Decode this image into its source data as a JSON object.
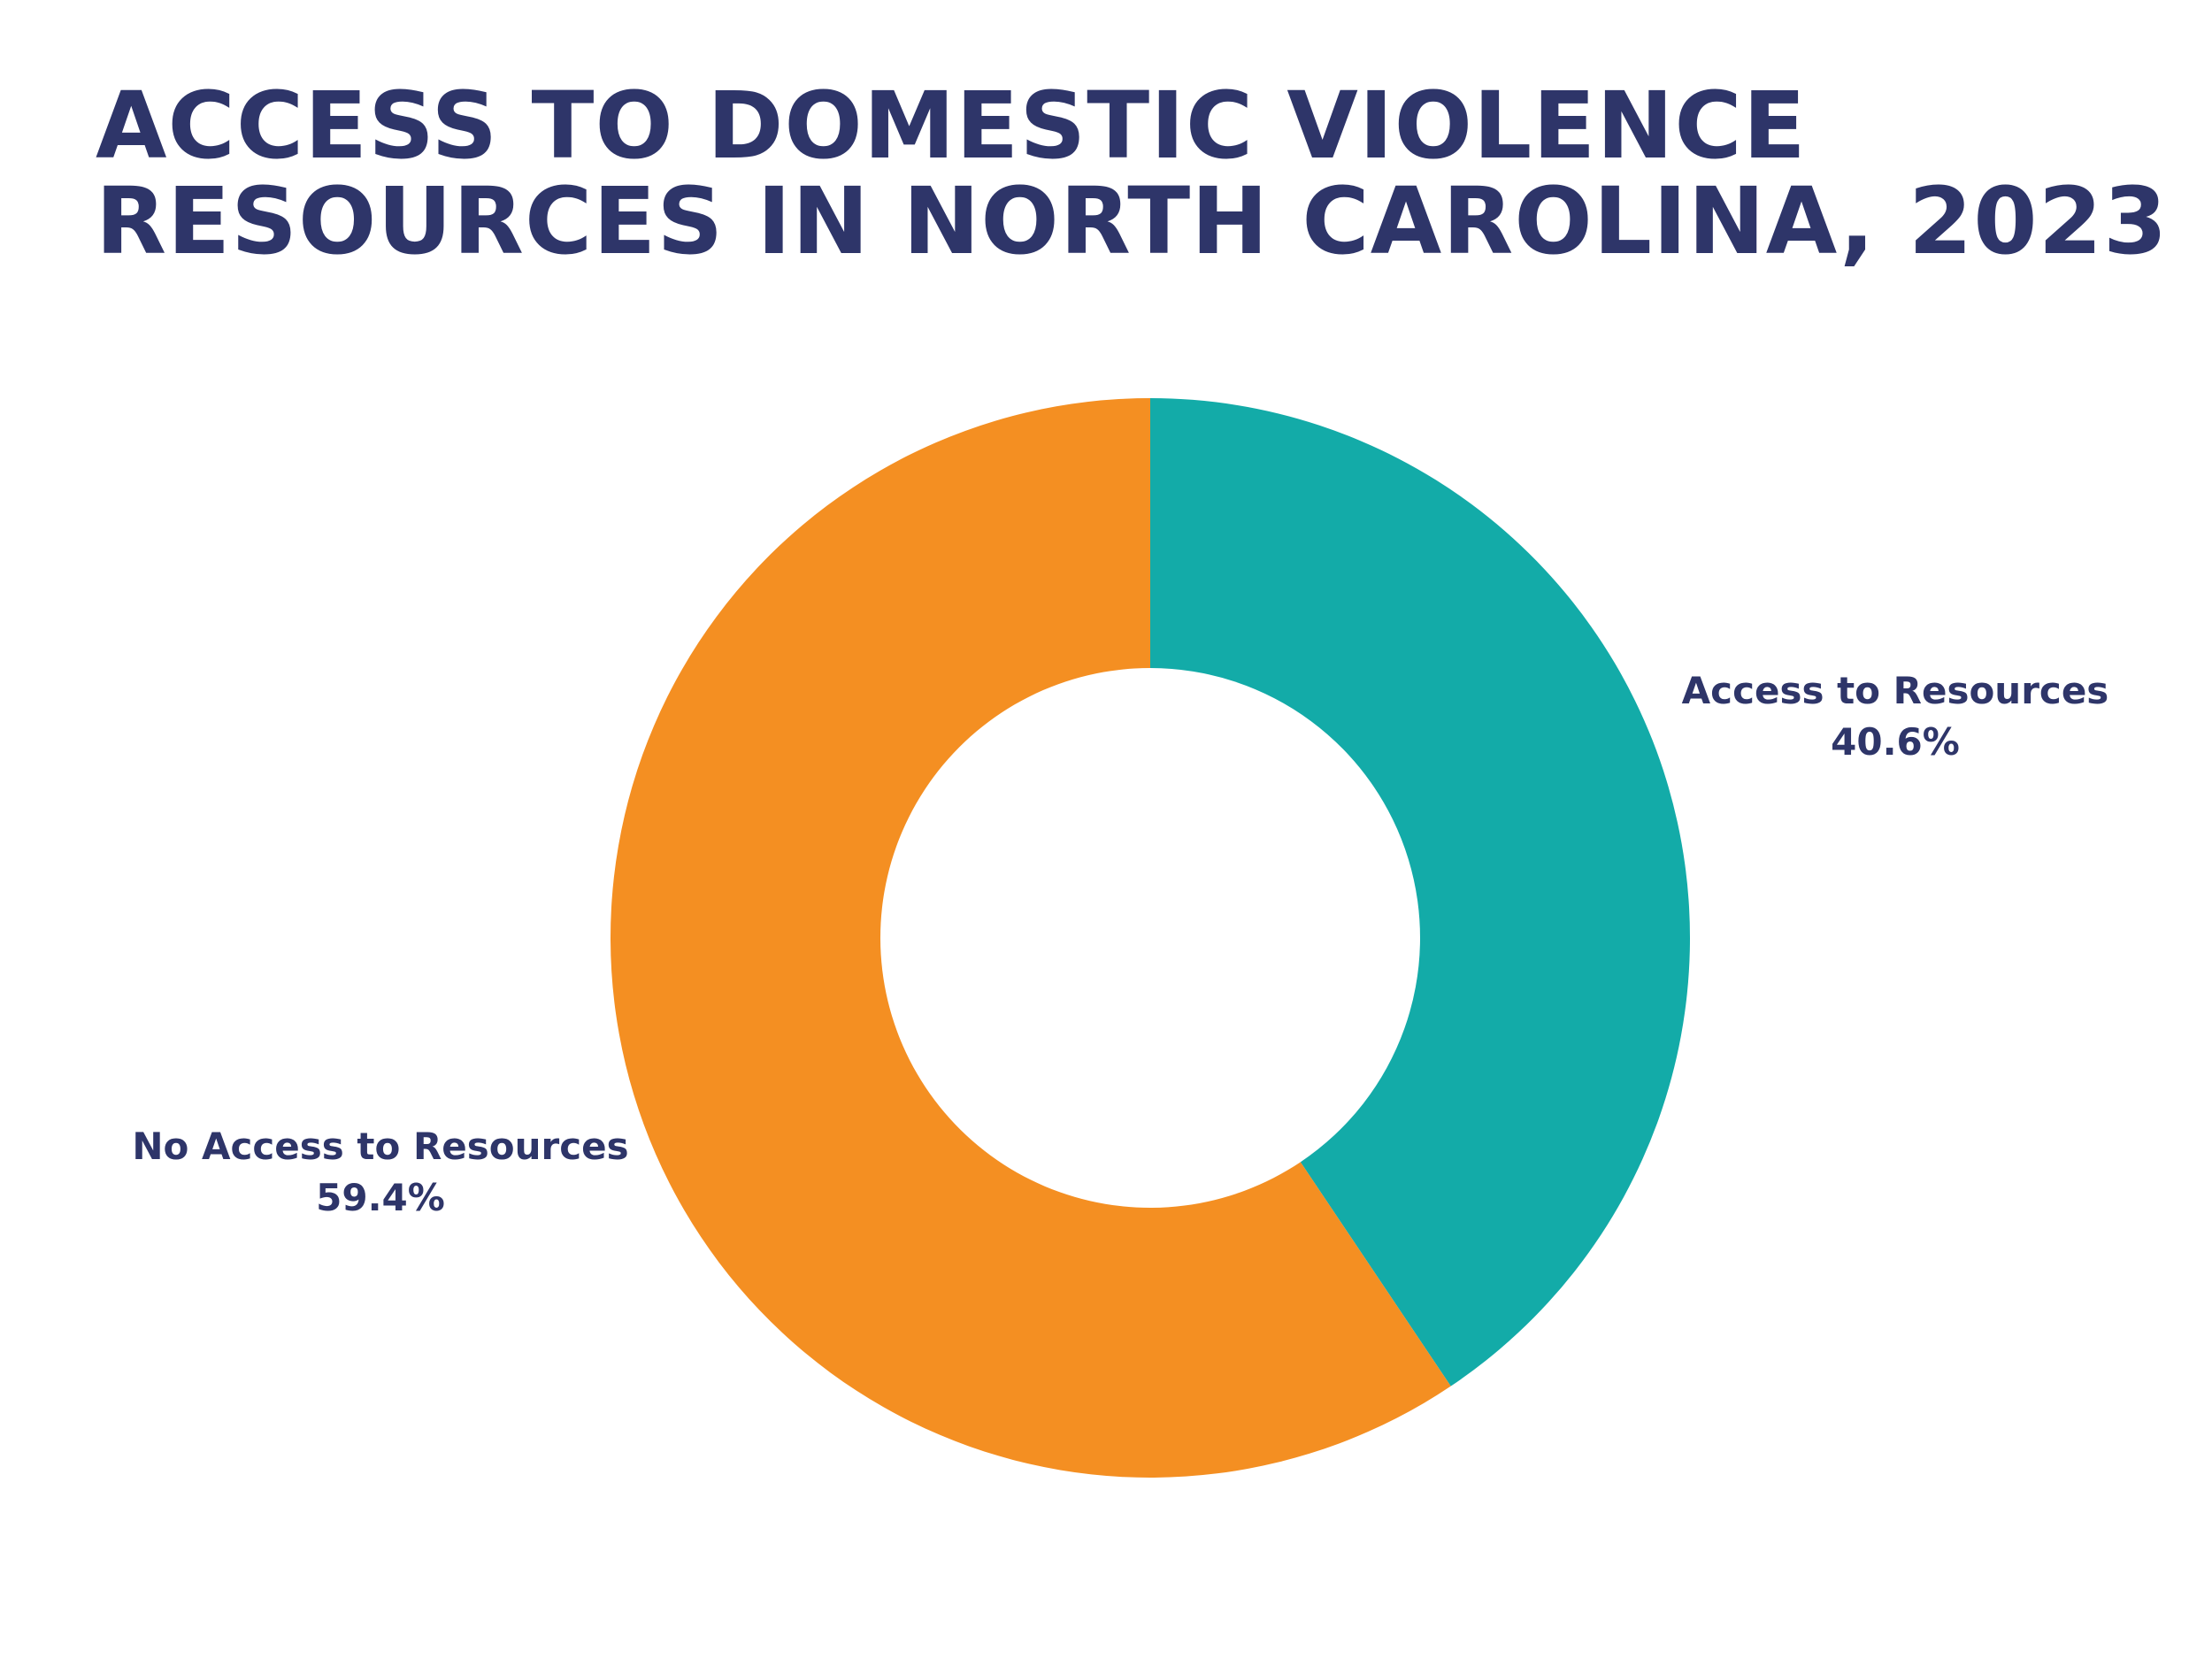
{
  "title_lines": [
    "ACCESS TO DOMESTIC VIOLENCE",
    "RESOURCES IN NORTH CAROLINA, 2023"
  ],
  "chart_data": {
    "type": "pie",
    "style": "donut",
    "title": "ACCESS TO DOMESTIC VIOLENCE RESOURCES IN NORTH CAROLINA, 2023",
    "slices": [
      {
        "label": "Access to Resources",
        "value": 40.6,
        "value_label": "40.6%",
        "color": "#13aba8"
      },
      {
        "label": "No Access to Resources",
        "value": 59.4,
        "value_label": "59.4%",
        "color": "#f48f22"
      }
    ],
    "start_angle": "12 o'clock",
    "direction": "clockwise",
    "legend": "none"
  }
}
